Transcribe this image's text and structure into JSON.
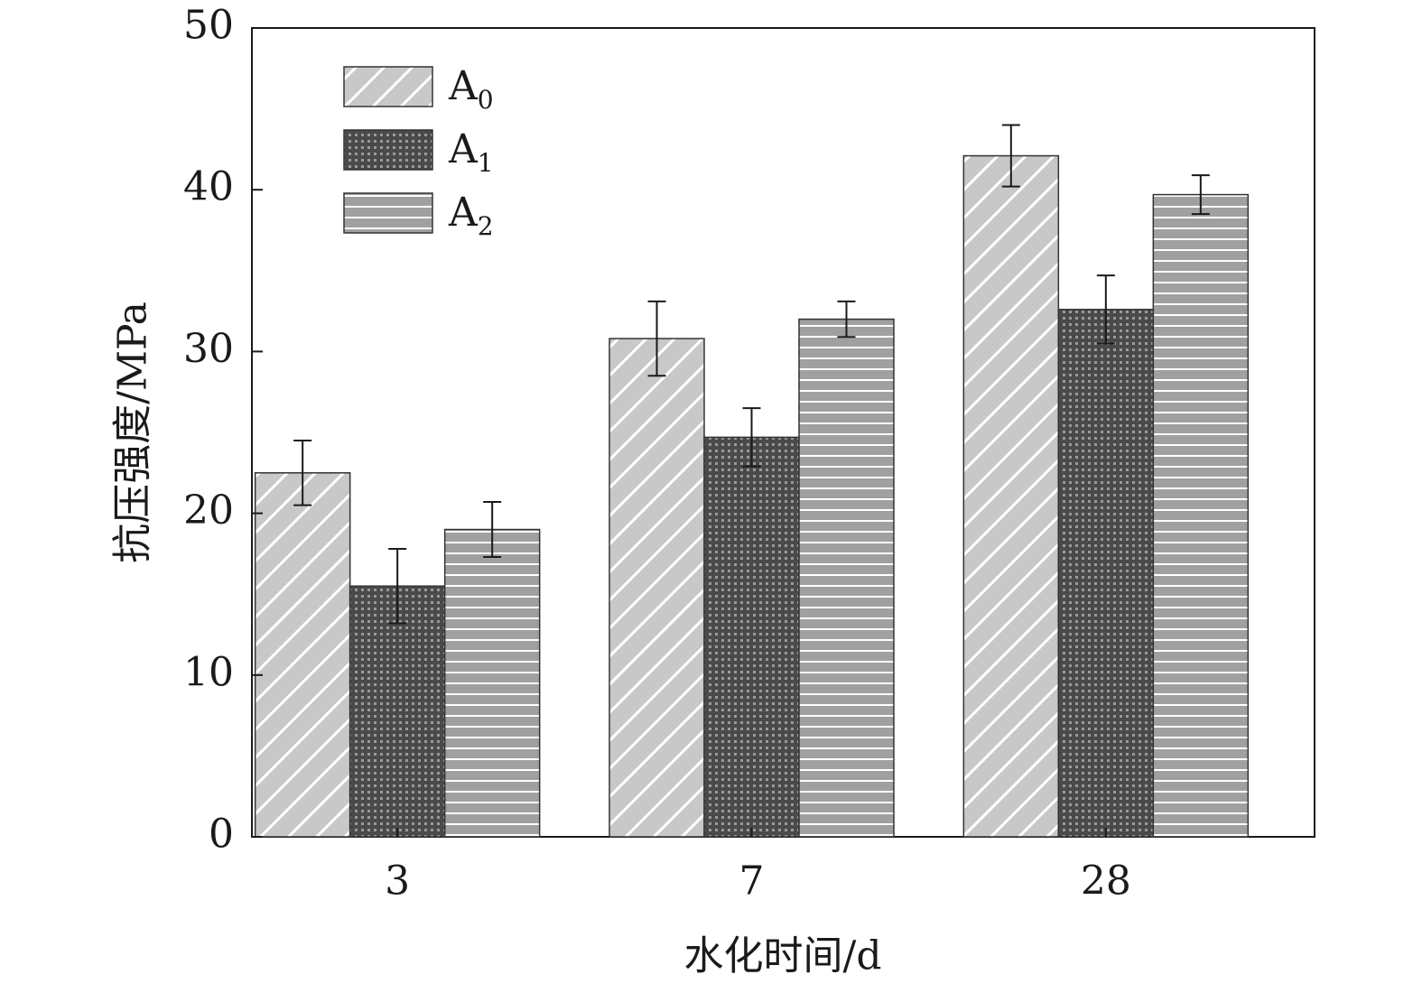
{
  "chart_data": {
    "type": "bar",
    "xlabel": "水化时间/d",
    "ylabel": "抗压强度/MPa",
    "categories": [
      "3",
      "7",
      "28"
    ],
    "ylim": [
      0,
      50
    ],
    "yticks": [
      0,
      10,
      20,
      30,
      40,
      50
    ],
    "grid": false,
    "legend_position": "top-left",
    "series": [
      {
        "name": "A0",
        "base": "A",
        "sub": "0",
        "pattern": "diagonal-hatch",
        "color": "#c8c8c8",
        "values": [
          22.5,
          30.8,
          42.1
        ],
        "errors": [
          2.0,
          2.3,
          1.9
        ]
      },
      {
        "name": "A1",
        "base": "A",
        "sub": "1",
        "pattern": "crosshatch-grid",
        "color": "#5a5a5a",
        "values": [
          15.5,
          24.7,
          32.6
        ],
        "errors": [
          2.3,
          1.8,
          2.1
        ]
      },
      {
        "name": "A2",
        "base": "A",
        "sub": "2",
        "pattern": "horizontal-lines",
        "color": "#a0a0a0",
        "values": [
          19.0,
          32.0,
          39.7
        ],
        "errors": [
          1.7,
          1.1,
          1.2
        ]
      }
    ]
  }
}
